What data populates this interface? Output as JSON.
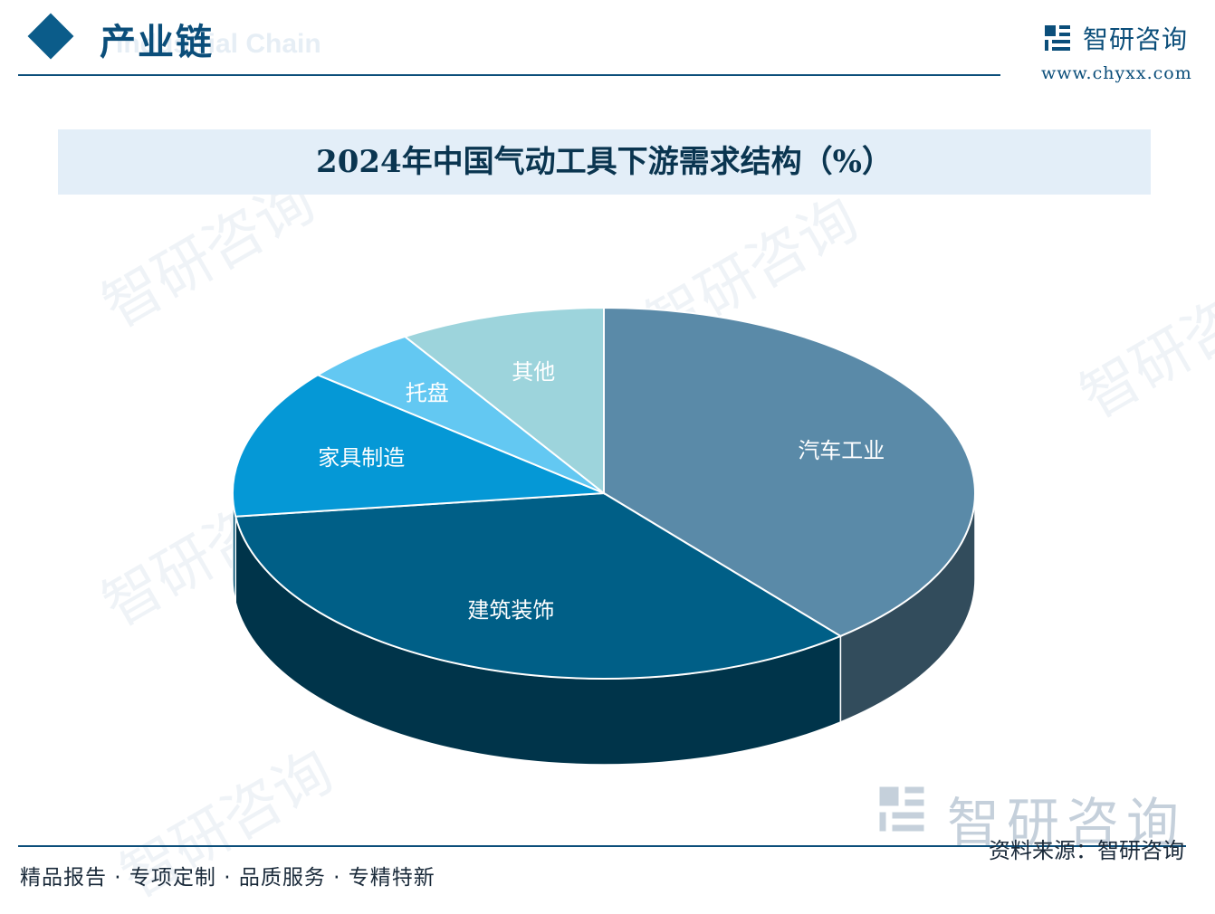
{
  "header": {
    "section_title": "产业链",
    "section_subtitle": "Industrial Chain",
    "logo_name": "智研咨询",
    "logo_url": "www.chyxx.com"
  },
  "chart_data": {
    "type": "pie",
    "title": "2024年中国气动工具下游需求结构（%）",
    "categories": [
      "汽车工业",
      "建筑装饰",
      "家具制造",
      "托盘",
      "其他"
    ],
    "values": [
      39,
      34,
      13,
      5,
      9
    ],
    "colors": [
      "#5a8aa8",
      "#005f87",
      "#0598d6",
      "#63c8f2",
      "#9dd4dc"
    ],
    "legend": "none",
    "data_labels": "category names on slices"
  },
  "watermark": {
    "text": "智研咨询"
  },
  "footer": {
    "tagline": "精品报告 · 专项定制 · 品质服务 · 专精特新",
    "source": "资料来源：智研咨询"
  }
}
